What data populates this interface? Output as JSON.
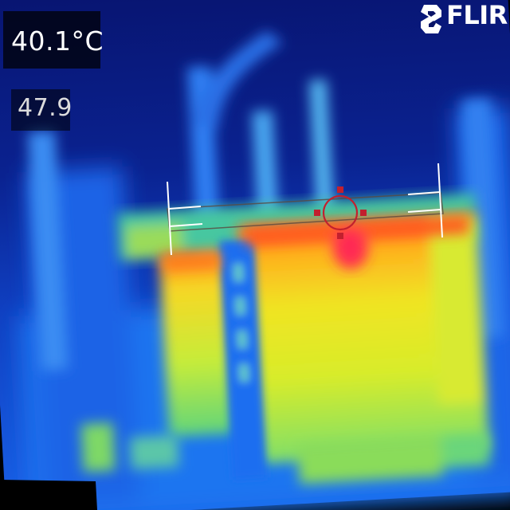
{
  "camera": {
    "brand": "FLIR",
    "spot_temperature": "40.1°C",
    "scale_max": "47.9"
  },
  "palette": {
    "cold": "#0a1466",
    "cool": "#1e6aff",
    "mid": "#7ee06a",
    "warm": "#f2e623",
    "hot": "#ff9a1e",
    "hottest": "#ff2a52",
    "reticle": "#c2202e"
  }
}
